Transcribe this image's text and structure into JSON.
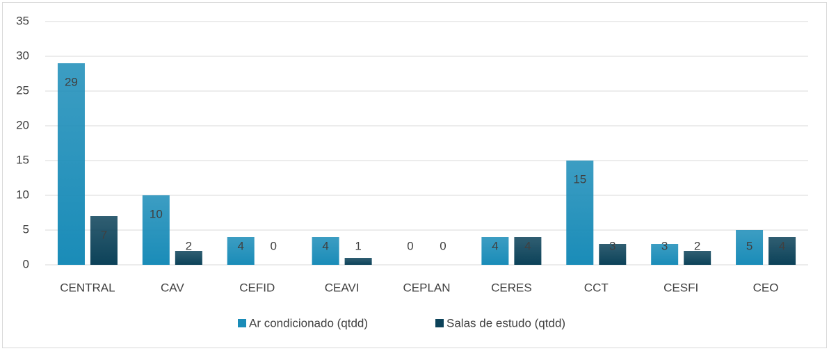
{
  "chart_data": {
    "type": "bar",
    "categories": [
      "CENTRAL",
      "CAV",
      "CEFID",
      "CEAVI",
      "CEPLAN",
      "CERES",
      "CCT",
      "CESFI",
      "CEO"
    ],
    "series": [
      {
        "name": "Ar condicionado (qtdd)",
        "color": "#1a8cb8",
        "values": [
          29,
          10,
          4,
          4,
          0,
          4,
          15,
          3,
          5
        ]
      },
      {
        "name": "Salas de estudo (qtdd)",
        "color": "#0c4259",
        "values": [
          7,
          2,
          0,
          1,
          0,
          4,
          3,
          2,
          4
        ]
      }
    ],
    "ylim": [
      0,
      35
    ],
    "yticks": [
      0,
      5,
      10,
      15,
      20,
      25,
      30,
      35
    ],
    "grid": true,
    "legend": "bottom",
    "data_labels": true
  }
}
